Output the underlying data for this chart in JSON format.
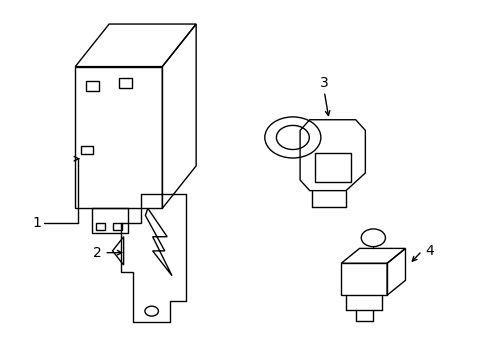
{
  "bg_color": "#ffffff",
  "line_color": "#000000",
  "label_color": "#000000",
  "fig_width": 4.89,
  "fig_height": 3.6,
  "dpi": 100,
  "label_fontsize": 10,
  "arrow_color": "#000000"
}
